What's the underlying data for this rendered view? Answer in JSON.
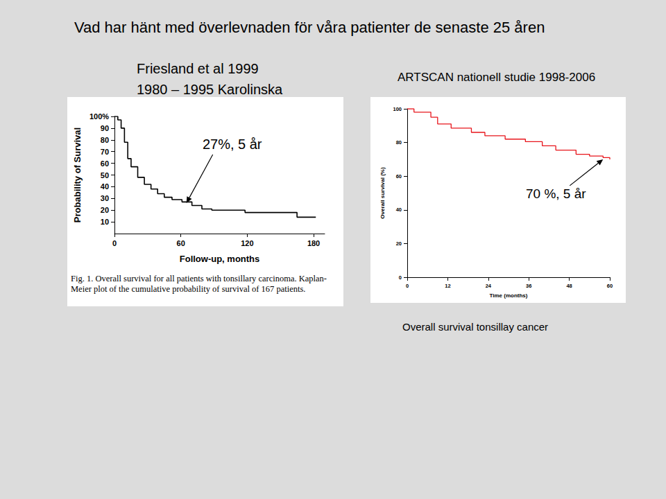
{
  "title": "Vad har hänt med överlevnaden för våra patienter de senaste 25 åren",
  "chart_data": [
    {
      "type": "step",
      "title": "Friesland et al 1999",
      "subtitle": "1980 – 1995 Karolinska",
      "caption": "Fig. 1. Overall survival for all patients with tonsillary carcinoma. Kaplan-Meier plot of the cumulative probability of survival of 167 patients.",
      "xlabel": "Follow-up, months",
      "ylabel": "Probability of Survival",
      "x": [
        0,
        3,
        6,
        9,
        12,
        15,
        21,
        27,
        33,
        39,
        45,
        52,
        61,
        70,
        79,
        88,
        118,
        165,
        182
      ],
      "values": [
        100,
        97,
        90,
        78,
        64,
        57,
        48,
        42,
        38,
        34,
        31,
        29,
        27,
        24,
        21,
        20,
        18,
        14,
        14
      ],
      "color": "#000000",
      "xlim": [
        0,
        190
      ],
      "xticks": [
        0,
        60,
        120,
        180
      ],
      "ylim": [
        0,
        100
      ],
      "yticks": [
        10,
        20,
        30,
        40,
        50,
        60,
        70,
        80,
        90,
        {
          "value": 100,
          "label": "100%"
        }
      ],
      "grid": false,
      "annotations": [
        {
          "text": "27%, 5 år",
          "x": 65,
          "y": 26
        }
      ]
    },
    {
      "type": "step",
      "title": "ARTSCAN nationell studie 1998-2006",
      "caption": "Overall survival tonsillay cancer",
      "xlabel": "Time (months)",
      "ylabel": "Overall survival (%)",
      "x": [
        0,
        2,
        7,
        9,
        13,
        19,
        23,
        29,
        35,
        40,
        44,
        50,
        54,
        58,
        60
      ],
      "values": [
        100,
        98,
        95,
        91,
        88.5,
        86,
        84,
        82,
        80.5,
        78,
        75.5,
        73,
        72,
        71,
        70
      ],
      "color": "#e8141b",
      "xlim": [
        0,
        60
      ],
      "xticks": [
        0,
        12,
        24,
        36,
        48,
        60
      ],
      "ylim": [
        0,
        100
      ],
      "yticks": [
        0,
        20,
        40,
        60,
        80,
        100
      ],
      "grid": false,
      "annotations": [
        {
          "text": "70 %, 5 år",
          "x": 58,
          "y": 70
        }
      ]
    }
  ]
}
